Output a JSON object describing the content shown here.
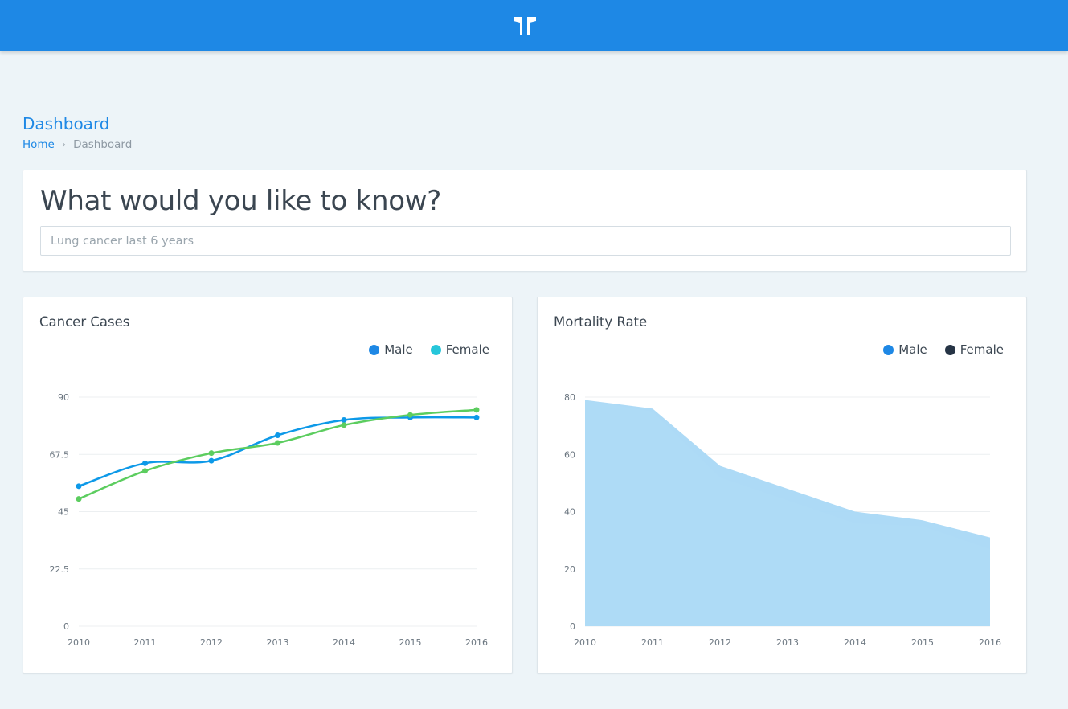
{
  "header": {
    "logo_icon": "brand-logo-icon",
    "bg_color": "#1e88e5"
  },
  "page": {
    "title": "Dashboard"
  },
  "breadcrumb": {
    "home": "Home",
    "separator": "›",
    "current": "Dashboard"
  },
  "ask": {
    "title": "What would you like to know?",
    "placeholder": "Lung cancer last 6 years"
  },
  "cases": {
    "title": "Cancer Cases",
    "legend": {
      "male": "Male",
      "female": "Female"
    },
    "legend_colors": {
      "male": "#1e88e5",
      "female": "#26c6da"
    }
  },
  "mortality": {
    "title": "Mortality Rate",
    "legend": {
      "male": "Male",
      "female": "Female"
    },
    "legend_colors": {
      "male": "#1e88e5",
      "female": "#263445"
    }
  },
  "chart_data": [
    {
      "type": "line",
      "title": "Cancer Cases",
      "categories": [
        "2010",
        "2011",
        "2012",
        "2013",
        "2014",
        "2015",
        "2016"
      ],
      "y_ticks": [
        "0",
        "22.5",
        "45",
        "67.5",
        "90"
      ],
      "ylim": [
        0,
        90
      ],
      "grid": true,
      "legend_position": "top-right",
      "series": [
        {
          "name": "Male",
          "color": "#0d99e8",
          "values": [
            55,
            64,
            65,
            75,
            81,
            82,
            82
          ]
        },
        {
          "name": "Female",
          "color": "#5ccd5f",
          "values": [
            50,
            61,
            68,
            72,
            79,
            83,
            85
          ]
        }
      ]
    },
    {
      "type": "area",
      "title": "Mortality Rate",
      "categories": [
        "2010",
        "2011",
        "2012",
        "2013",
        "2014",
        "2015",
        "2016"
      ],
      "y_ticks": [
        "0",
        "20",
        "40",
        "60",
        "80"
      ],
      "ylim": [
        0,
        80
      ],
      "grid": true,
      "legend_position": "top-right",
      "series": [
        {
          "name": "Male",
          "color": "#a9d8f5",
          "values": [
            79,
            76,
            56,
            48,
            40,
            37,
            31
          ]
        },
        {
          "name": "Female",
          "color": "#aedaf6",
          "values": [
            79,
            75,
            52,
            44,
            36,
            35,
            27
          ]
        }
      ]
    }
  ]
}
